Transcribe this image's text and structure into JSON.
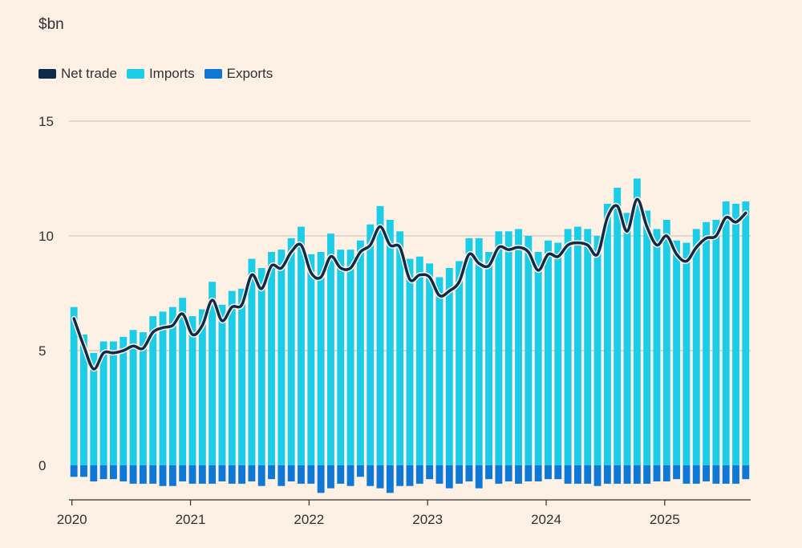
{
  "colors": {
    "background": "#fdf1e6",
    "net_trade": "#0f2a4a",
    "imports": "#1ccde8",
    "exports": "#0f78d6",
    "grid": "#c9bfb6",
    "axis": "#33302e"
  },
  "chart_data": {
    "type": "bar",
    "title": "",
    "ylabel": "$bn",
    "xlabel": "",
    "ylim": [
      -1.5,
      15
    ],
    "yticks": [
      0,
      5,
      10,
      15
    ],
    "xtick_labels": [
      "2020",
      "2021",
      "2022",
      "2023",
      "2024",
      "2025"
    ],
    "grid": true,
    "legend_position": "top-left",
    "x": [
      "2020-01",
      "2020-02",
      "2020-03",
      "2020-04",
      "2020-05",
      "2020-06",
      "2020-07",
      "2020-08",
      "2020-09",
      "2020-10",
      "2020-11",
      "2020-12",
      "2021-01",
      "2021-02",
      "2021-03",
      "2021-04",
      "2021-05",
      "2021-06",
      "2021-07",
      "2021-08",
      "2021-09",
      "2021-10",
      "2021-11",
      "2021-12",
      "2022-01",
      "2022-02",
      "2022-03",
      "2022-04",
      "2022-05",
      "2022-06",
      "2022-07",
      "2022-08",
      "2022-09",
      "2022-10",
      "2022-11",
      "2022-12",
      "2023-01",
      "2023-02",
      "2023-03",
      "2023-04",
      "2023-05",
      "2023-06",
      "2023-07",
      "2023-08",
      "2023-09",
      "2023-10",
      "2023-11",
      "2023-12",
      "2024-01",
      "2024-02",
      "2024-03",
      "2024-04",
      "2024-05",
      "2024-06",
      "2024-07",
      "2024-08",
      "2024-09",
      "2024-10",
      "2024-11",
      "2024-12",
      "2025-01",
      "2025-02",
      "2025-03",
      "2025-04",
      "2025-05",
      "2025-06",
      "2025-07",
      "2025-08",
      "2025-09"
    ],
    "series": [
      {
        "name": "Net trade",
        "mark": "line",
        "values": [
          6.4,
          5.2,
          4.2,
          4.9,
          4.9,
          5.0,
          5.2,
          5.1,
          5.8,
          6.0,
          6.1,
          6.6,
          5.7,
          6.1,
          7.2,
          6.3,
          6.9,
          7.0,
          8.3,
          7.7,
          8.7,
          8.6,
          9.3,
          9.6,
          8.4,
          8.2,
          9.1,
          8.6,
          8.6,
          9.3,
          9.6,
          10.4,
          9.6,
          9.5,
          8.1,
          8.3,
          8.2,
          7.4,
          7.6,
          8.0,
          9.2,
          8.8,
          8.7,
          9.5,
          9.4,
          9.5,
          9.3,
          8.5,
          9.2,
          9.1,
          9.6,
          9.7,
          9.6,
          9.2,
          10.8,
          11.3,
          10.2,
          11.6,
          10.4,
          9.6,
          10.0,
          9.2,
          8.9,
          9.5,
          9.9,
          10.0,
          10.8,
          10.6,
          11.0
        ]
      },
      {
        "name": "Imports",
        "mark": "bar",
        "values": [
          6.9,
          5.7,
          4.9,
          5.4,
          5.4,
          5.6,
          5.9,
          5.8,
          6.5,
          6.7,
          6.9,
          7.3,
          6.5,
          6.8,
          8.0,
          7.0,
          7.6,
          7.7,
          9.0,
          8.6,
          9.3,
          9.4,
          9.9,
          10.4,
          9.2,
          9.3,
          10.1,
          9.4,
          9.4,
          9.8,
          10.5,
          11.3,
          10.7,
          10.2,
          9.0,
          9.1,
          8.8,
          8.2,
          8.6,
          8.9,
          9.9,
          9.9,
          9.3,
          10.2,
          10.2,
          10.3,
          10.0,
          9.3,
          9.8,
          9.7,
          10.3,
          10.4,
          10.3,
          10.0,
          11.4,
          12.1,
          11.0,
          12.5,
          11.1,
          10.3,
          10.7,
          9.8,
          9.7,
          10.3,
          10.6,
          10.7,
          11.5,
          11.4,
          11.5
        ]
      },
      {
        "name": "Exports",
        "mark": "bar",
        "values": [
          -0.5,
          -0.5,
          -0.7,
          -0.6,
          -0.6,
          -0.7,
          -0.8,
          -0.8,
          -0.8,
          -0.9,
          -0.9,
          -0.7,
          -0.8,
          -0.8,
          -0.8,
          -0.7,
          -0.8,
          -0.8,
          -0.7,
          -0.9,
          -0.6,
          -0.9,
          -0.7,
          -0.8,
          -0.8,
          -1.2,
          -1.0,
          -0.8,
          -0.9,
          -0.5,
          -0.9,
          -1.0,
          -1.2,
          -0.9,
          -0.9,
          -0.8,
          -0.6,
          -0.8,
          -1.0,
          -0.8,
          -0.7,
          -1.0,
          -0.6,
          -0.8,
          -0.7,
          -0.8,
          -0.7,
          -0.7,
          -0.6,
          -0.6,
          -0.8,
          -0.8,
          -0.8,
          -0.9,
          -0.8,
          -0.8,
          -0.8,
          -0.8,
          -0.8,
          -0.7,
          -0.7,
          -0.6,
          -0.8,
          -0.8,
          -0.7,
          -0.8,
          -0.8,
          -0.8,
          -0.6
        ]
      }
    ]
  }
}
